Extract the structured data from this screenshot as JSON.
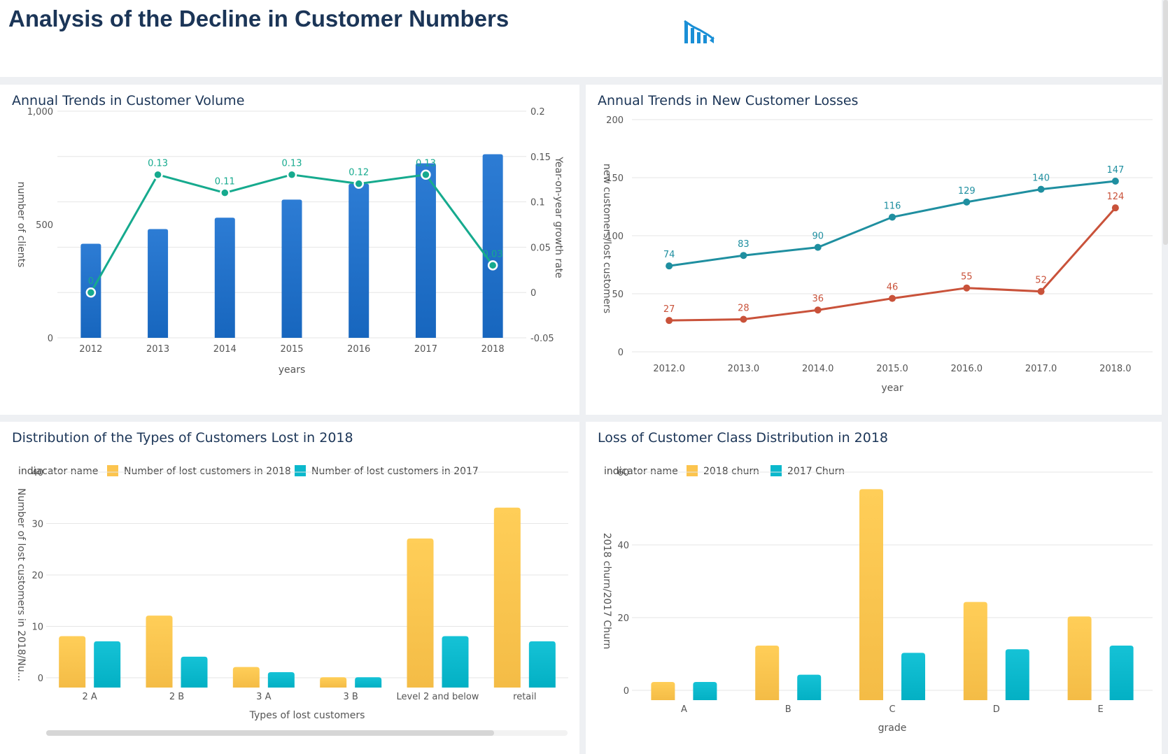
{
  "header": {
    "title": "Analysis of the Decline in Customer Numbers",
    "icon": "declining-chart-icon",
    "icon_color": "#1a8fd6"
  },
  "panels": {
    "p1": {
      "title": "Annual Trends in Customer Volume"
    },
    "p2": {
      "title": "Annual Trends in New Customer Losses"
    },
    "p3": {
      "title": "Distribution of the Types of Customers Lost in 2018"
    },
    "p4": {
      "title": "Loss of Customer Class Distribution in 2018"
    }
  },
  "chart_data": [
    {
      "id": "customer-volume",
      "type": "bar+line",
      "title": "Annual Trends in Customer Volume",
      "xlabel": "years",
      "ylabel": "number of clients",
      "ylabel_right": "Year-on-year growth rate",
      "categories": [
        "2012",
        "2013",
        "2014",
        "2015",
        "2016",
        "2017",
        "2018"
      ],
      "bar_values": [
        415,
        480,
        530,
        610,
        680,
        770,
        810
      ],
      "line_values": [
        0,
        0.13,
        0.11,
        0.13,
        0.12,
        0.13,
        0.03
      ],
      "line_labels": [
        "0",
        "0.13",
        "0.11",
        "0.13",
        "0.12",
        "0.13",
        "0.03"
      ],
      "ylim": [
        0,
        1000
      ],
      "y_ticks": [
        "0",
        "500",
        "1,000"
      ],
      "ylim_right": [
        -0.05,
        0.2
      ],
      "y_ticks_right": [
        "-0.05",
        "0",
        "0.05",
        "0.1",
        "0.15",
        "0.2"
      ],
      "bar_color": "#2170c8",
      "line_color": "#16aa8e",
      "grid": true
    },
    {
      "id": "new-customer-losses",
      "type": "line",
      "title": "Annual Trends in New Customer Losses",
      "xlabel": "year",
      "ylabel": "new customers/lost customers",
      "categories": [
        "2012.0",
        "2013.0",
        "2014.0",
        "2015.0",
        "2016.0",
        "2017.0",
        "2018.0"
      ],
      "ylim": [
        0,
        200
      ],
      "y_ticks": [
        "0",
        "50",
        "100",
        "150",
        "200"
      ],
      "grid": true,
      "series": [
        {
          "values": [
            74,
            83,
            90,
            116,
            129,
            140,
            147
          ],
          "color": "#1f8fa0"
        },
        {
          "values": [
            27,
            28,
            36,
            46,
            55,
            52,
            124
          ],
          "color": "#c9523a"
        }
      ]
    },
    {
      "id": "lost-customer-types",
      "type": "bar",
      "title": "Distribution of the Types of Customers Lost in 2018",
      "xlabel": "Types of lost customers",
      "ylabel": "Number of lost customers in 2018/Nu...",
      "legend_title": "indiacator name",
      "legend_position": "top-left",
      "categories": [
        "2 A",
        "2 B",
        "3 A",
        "3 B",
        "Level 2 and below",
        "retail"
      ],
      "ylim": [
        0,
        40
      ],
      "y_ticks": [
        "0",
        "10",
        "20",
        "30",
        "40"
      ],
      "grid": true,
      "series": [
        {
          "name": "Number of lost customers in 2018",
          "values": [
            10,
            14,
            4,
            2,
            29,
            35
          ],
          "color": "#fcc44e"
        },
        {
          "name": "Number of lost customers in 2017",
          "values": [
            9,
            6,
            3,
            2,
            10,
            9
          ],
          "color": "#0bb8cc"
        }
      ]
    },
    {
      "id": "customer-class-loss",
      "type": "bar",
      "title": "Loss of Customer Class Distribution in 2018",
      "xlabel": "grade",
      "ylabel": "2018 churn/2017 Churn",
      "legend_title": "indicator name",
      "legend_position": "top-left",
      "categories": [
        "A",
        "B",
        "C",
        "D",
        "E"
      ],
      "ylim": [
        0,
        60
      ],
      "y_ticks": [
        "0",
        "20",
        "40",
        "60"
      ],
      "grid": true,
      "series": [
        {
          "name": "2018 churn",
          "values": [
            5,
            15,
            58,
            27,
            23
          ],
          "color": "#fcc44e"
        },
        {
          "name": "2017 Churn",
          "values": [
            5,
            7,
            13,
            14,
            15
          ],
          "color": "#0bb8cc"
        }
      ]
    }
  ]
}
